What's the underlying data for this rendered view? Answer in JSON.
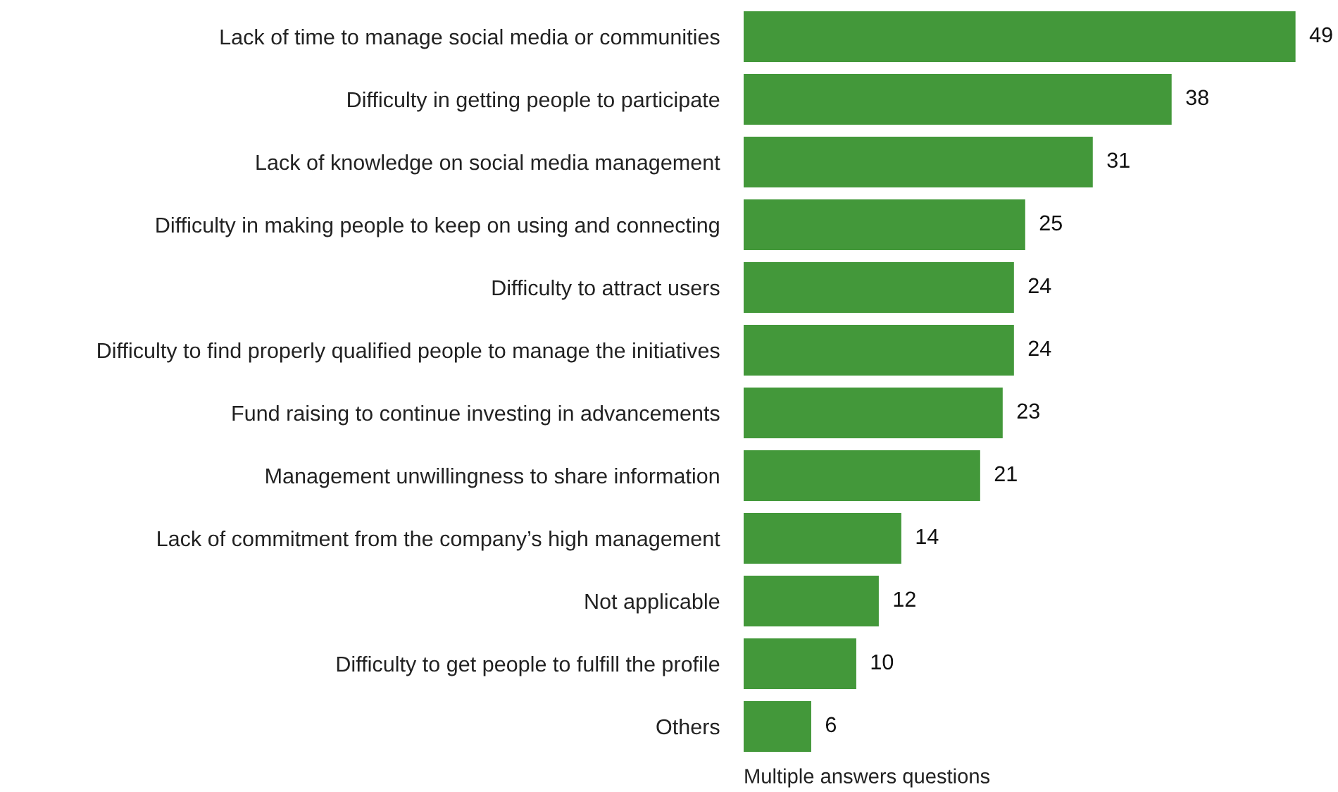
{
  "chart_data": {
    "type": "bar",
    "orientation": "horizontal",
    "categories": [
      "Lack of time to manage social media or communities",
      "Difficulty in getting people to participate",
      "Lack of knowledge on social media management",
      "Difficulty in making people to keep on using and connecting",
      "Difficulty to attract users",
      "Difficulty to find properly qualified people to manage the initiatives",
      "Fund raising to continue investing in advancements",
      "Management unwillingness to share information",
      "Lack of commitment from the company’s high management",
      "Not applicable",
      "Difficulty to get people to fulfill the profile",
      "Others"
    ],
    "values": [
      49,
      38,
      31,
      25,
      24,
      24,
      23,
      21,
      14,
      12,
      10,
      6
    ],
    "color": "#43983a",
    "data_labels": true,
    "grid": false,
    "legend": false,
    "annotations": [
      "Multiple answers questions"
    ]
  }
}
